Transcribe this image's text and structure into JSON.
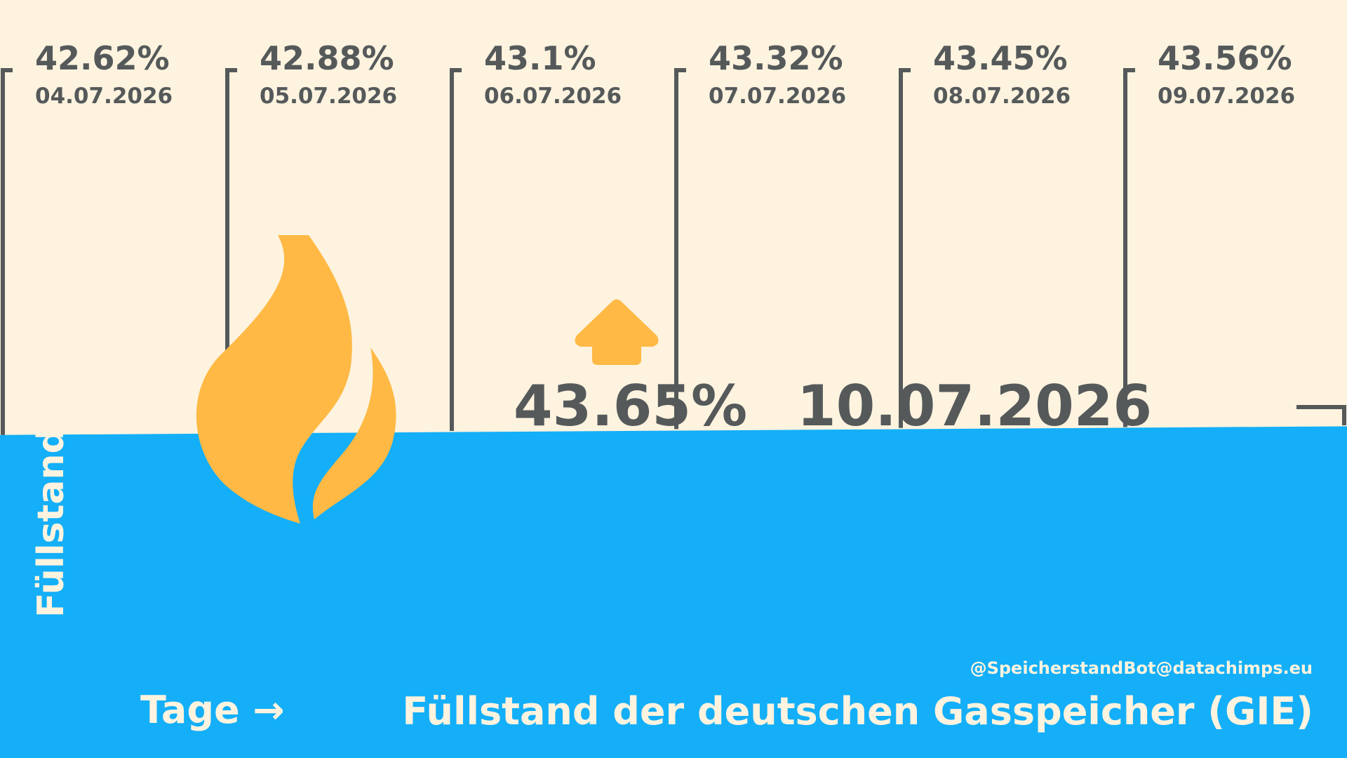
{
  "chart_data": {
    "type": "area",
    "title": "Füllstand der deutschen Gasspeicher (GIE)",
    "xlabel": "Tage →",
    "ylabel": "Füllstand →",
    "credit": "@SpeicherstandBot@datachimps.eu",
    "history": [
      {
        "date": "04.07.2026",
        "label": "42.62%",
        "value": 42.62
      },
      {
        "date": "05.07.2026",
        "label": "42.88%",
        "value": 42.88
      },
      {
        "date": "06.07.2026",
        "label": "43.1%",
        "value": 43.1
      },
      {
        "date": "07.07.2026",
        "label": "43.32%",
        "value": 43.32
      },
      {
        "date": "08.07.2026",
        "label": "43.45%",
        "value": 43.45
      },
      {
        "date": "09.07.2026",
        "label": "43.56%",
        "value": 43.56
      }
    ],
    "current": {
      "date": "10.07.2026",
      "label": "43.65%",
      "value": 43.65
    },
    "trend": "up",
    "icons": [
      "flame-icon",
      "arrow-up-icon"
    ],
    "colors": {
      "background": "#fdf3df",
      "fill": "#14aff8",
      "text": "#55595a",
      "accent": "#ffb944",
      "caption": "#fdf3df"
    }
  }
}
